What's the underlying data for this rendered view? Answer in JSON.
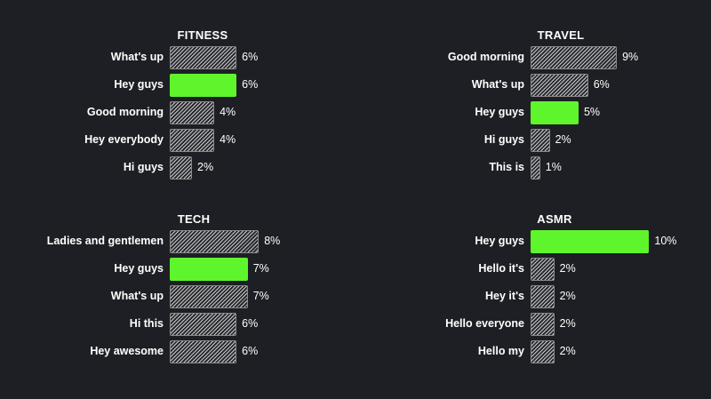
{
  "colors": {
    "background": "#1e1f24",
    "highlight": "#5ef52c",
    "bar_pattern": "hatched-gray",
    "text": "#ffffff"
  },
  "chart_data": [
    {
      "type": "bar",
      "title": "FITNESS",
      "orientation": "horizontal",
      "categories": [
        "What's up",
        "Hey guys",
        "Good morning",
        "Hey everybody",
        "Hi guys"
      ],
      "values": [
        6,
        6,
        4,
        4,
        2
      ],
      "labels": [
        "6%",
        "6%",
        "4%",
        "4%",
        "2%"
      ],
      "highlight": "Hey guys",
      "unit": "%"
    },
    {
      "type": "bar",
      "title": "TRAVEL",
      "orientation": "horizontal",
      "categories": [
        "Good morning",
        "What's up",
        "Hey guys",
        "Hi guys",
        "This is"
      ],
      "values": [
        9,
        6,
        5,
        2,
        1
      ],
      "labels": [
        "9%",
        "6%",
        "5%",
        "2%",
        "1%"
      ],
      "highlight": "Hey guys",
      "unit": "%"
    },
    {
      "type": "bar",
      "title": "TECH",
      "orientation": "horizontal",
      "categories": [
        "Ladies and gentlemen",
        "Hey guys",
        "What's up",
        "Hi this",
        "Hey awesome"
      ],
      "values": [
        8,
        7,
        7,
        6,
        6
      ],
      "labels": [
        "8%",
        "7%",
        "7%",
        "6%",
        "6%"
      ],
      "highlight": "Hey guys",
      "unit": "%"
    },
    {
      "type": "bar",
      "title": "ASMR",
      "orientation": "horizontal",
      "categories": [
        "Hey guys",
        "Hello it's",
        "Hey it's",
        "Hello everyone",
        "Hello my"
      ],
      "values": [
        10,
        2,
        2,
        2,
        2
      ],
      "labels": [
        "10%",
        "2%",
        "2%",
        "2%",
        "2%"
      ],
      "highlight": "Hey guys",
      "unit": "%"
    }
  ]
}
